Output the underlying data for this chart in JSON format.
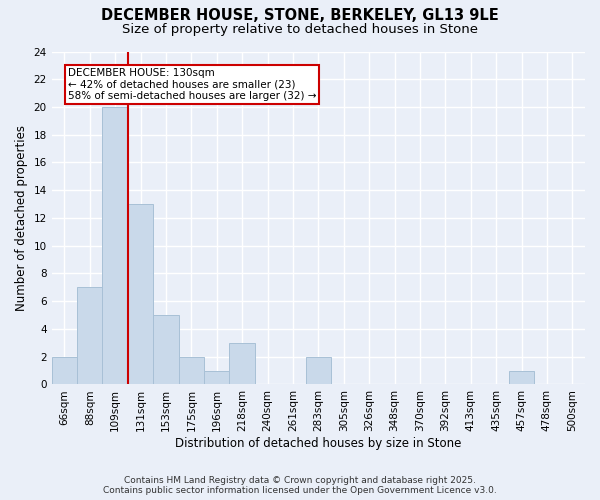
{
  "title_line1": "DECEMBER HOUSE, STONE, BERKELEY, GL13 9LE",
  "title_line2": "Size of property relative to detached houses in Stone",
  "xlabel": "Distribution of detached houses by size in Stone",
  "ylabel": "Number of detached properties",
  "bin_labels": [
    "66sqm",
    "88sqm",
    "109sqm",
    "131sqm",
    "153sqm",
    "175sqm",
    "196sqm",
    "218sqm",
    "240sqm",
    "261sqm",
    "283sqm",
    "305sqm",
    "326sqm",
    "348sqm",
    "370sqm",
    "392sqm",
    "413sqm",
    "435sqm",
    "457sqm",
    "478sqm",
    "500sqm"
  ],
  "bar_values": [
    2,
    7,
    20,
    13,
    5,
    2,
    1,
    3,
    0,
    0,
    2,
    0,
    0,
    0,
    0,
    0,
    0,
    0,
    1,
    0,
    0
  ],
  "bar_color": "#c9d9ea",
  "bar_edgecolor": "#a8c0d6",
  "background_color": "#eaeff8",
  "grid_color": "#ffffff",
  "property_label": "DECEMBER HOUSE: 130sqm",
  "annotation_line2": "← 42% of detached houses are smaller (23)",
  "annotation_line3": "58% of semi-detached houses are larger (32) →",
  "annotation_box_color": "#ffffff",
  "annotation_box_edgecolor": "#cc0000",
  "vline_color": "#cc0000",
  "vline_bar_index": 3,
  "ylim": [
    0,
    24
  ],
  "yticks": [
    0,
    2,
    4,
    6,
    8,
    10,
    12,
    14,
    16,
    18,
    20,
    22,
    24
  ],
  "footer_line1": "Contains HM Land Registry data © Crown copyright and database right 2025.",
  "footer_line2": "Contains public sector information licensed under the Open Government Licence v3.0.",
  "title_fontsize": 10.5,
  "subtitle_fontsize": 9.5,
  "axis_label_fontsize": 8.5,
  "tick_fontsize": 7.5,
  "annotation_fontsize": 7.5,
  "footer_fontsize": 6.5
}
